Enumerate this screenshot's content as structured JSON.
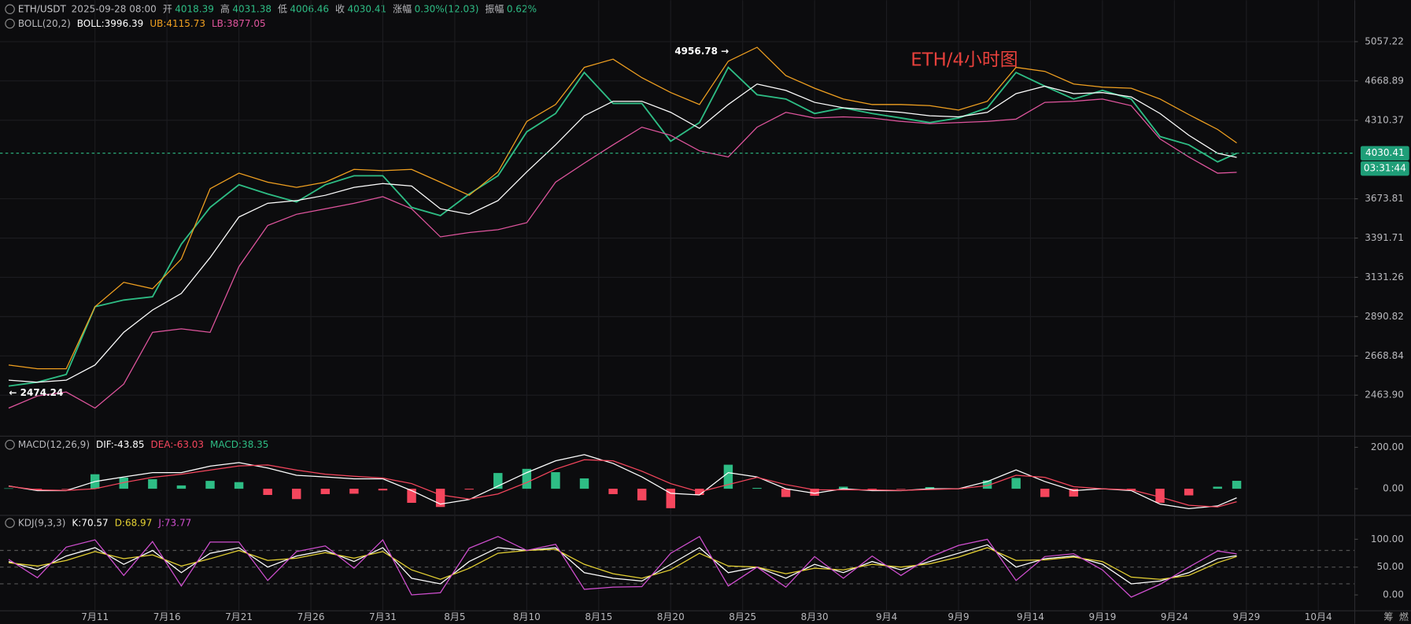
{
  "header": {
    "symbol": "ETH/USDT",
    "time": "2025-09-28 08:00",
    "fields": [
      {
        "label": "开",
        "value": "4018.39"
      },
      {
        "label": "高",
        "value": "4031.38"
      },
      {
        "label": "低",
        "value": "4006.46"
      },
      {
        "label": "收",
        "value": "4030.41"
      },
      {
        "label": "涨幅",
        "value": "0.30%(12.03)"
      },
      {
        "label": "振幅",
        "value": "0.62%"
      }
    ],
    "toolbar": [
      "筹",
      "燃"
    ]
  },
  "chart_data": [
    {
      "type": "line",
      "title": "ETH/4小时图",
      "indicator": "BOLL(20,2)",
      "indicator_values": [
        {
          "text": "BOLL:3996.39",
          "color": "#ffffff"
        },
        {
          "text": "UB:4115.73",
          "color": "#f0a020"
        },
        {
          "text": "LB:3877.05",
          "color": "#e0559e"
        }
      ],
      "x": [
        186,
        188,
        190,
        192,
        194,
        196,
        198,
        200,
        202,
        204,
        206,
        208,
        210,
        212,
        214,
        216,
        218,
        220,
        222,
        224,
        226,
        228,
        230,
        232,
        234,
        236,
        238,
        240,
        242,
        244,
        246,
        248,
        250,
        252,
        254,
        256,
        258,
        260,
        262,
        264,
        266,
        268,
        270,
        271.33
      ],
      "xlim": [
        185.4,
        279.5
      ],
      "ylim": [
        2273,
        5502
      ],
      "log_scale": true,
      "grid": true,
      "yticks": [
        5057.22,
        4668.89,
        4310.37,
        3673.81,
        3391.71,
        3131.26,
        2890.82,
        2668.84,
        {
          "value": 2463.9,
          "label": "2463.90"
        }
      ],
      "series": [
        {
          "color": "#2ebd85",
          "values": [
            2510,
            2530,
            2570,
            2950,
            2990,
            3010,
            3350,
            3610,
            3780,
            3710,
            3650,
            3780,
            3850,
            3850,
            3610,
            3550,
            3710,
            3850,
            4210,
            4370,
            4750,
            4460,
            4460,
            4130,
            4290,
            4800,
            4540,
            4500,
            4370,
            4420,
            4370,
            4330,
            4290,
            4330,
            4420,
            4750,
            4620,
            4500,
            4580,
            4500,
            4170,
            4100,
            3960,
            4030.41
          ]
        },
        {
          "color": "#ffffff",
          "values": [
            2540,
            2530,
            2540,
            2620,
            2800,
            2930,
            3030,
            3260,
            3540,
            3640,
            3660,
            3700,
            3760,
            3790,
            3770,
            3600,
            3560,
            3660,
            3880,
            4100,
            4350,
            4480,
            4480,
            4380,
            4240,
            4450,
            4640,
            4580,
            4470,
            4420,
            4400,
            4380,
            4350,
            4340,
            4380,
            4550,
            4620,
            4550,
            4560,
            4520,
            4370,
            4180,
            4030,
            3996.39
          ]
        },
        {
          "color": "#f0a020",
          "values": [
            2620,
            2600,
            2600,
            2950,
            3100,
            3060,
            3250,
            3750,
            3870,
            3800,
            3760,
            3800,
            3900,
            3890,
            3900,
            3800,
            3700,
            3880,
            4300,
            4450,
            4800,
            4880,
            4700,
            4560,
            4450,
            4860,
            5000,
            4720,
            4600,
            4500,
            4450,
            4450,
            4440,
            4400,
            4480,
            4800,
            4760,
            4640,
            4610,
            4600,
            4500,
            4360,
            4230,
            4115.73
          ]
        },
        {
          "color": "#e0559e",
          "values": [
            2400,
            2460,
            2480,
            2400,
            2520,
            2800,
            2820,
            2800,
            3200,
            3480,
            3560,
            3600,
            3640,
            3690,
            3600,
            3400,
            3430,
            3450,
            3500,
            3800,
            3950,
            4100,
            4250,
            4180,
            4050,
            4000,
            4250,
            4380,
            4330,
            4340,
            4330,
            4300,
            4280,
            4290,
            4300,
            4320,
            4470,
            4480,
            4500,
            4440,
            4150,
            4000,
            3870,
            3877.05
          ]
        }
      ],
      "annotations": [
        {
          "value": 4956.78,
          "label": "4956.78 →"
        },
        {
          "value": 2474.24,
          "label": "← 2474.24"
        }
      ],
      "last_price": {
        "value": 4030.41,
        "label": "4030.41"
      },
      "countdown": "03:31:44"
    },
    {
      "type": "line",
      "indicator": "MACD(12,26,9)",
      "indicator_values": [
        {
          "text": "DIF:-43.85",
          "color": "#ffffff"
        },
        {
          "text": "DEA:-63.03",
          "color": "#f6465d"
        },
        {
          "text": "MACD:38.35",
          "color": "#2ebd85"
        }
      ],
      "ylim": [
        -122,
        243
      ],
      "yticks": [
        {
          "value": 200,
          "label": "200.00"
        },
        {
          "value": 0,
          "label": "0.00"
        }
      ],
      "series": [
        {
          "kind": "bar",
          "up_color": "#2ebd85",
          "down_color": "#f6465d",
          "values": [
            2,
            -8,
            -2,
            70,
            54,
            46,
            16,
            38,
            32,
            -30,
            -50,
            -26,
            -24,
            -8,
            -68,
            -88,
            -4,
            76,
            96,
            80,
            50,
            -26,
            -56,
            -94,
            -30,
            116,
            4,
            -40,
            -34,
            10,
            -8,
            -2,
            8,
            0,
            40,
            52,
            -40,
            -38,
            0,
            -8,
            -68,
            -32,
            10,
            38.35
          ]
        },
        {
          "color": "#ffffff",
          "values": [
            13,
            -9,
            -9,
            35,
            57,
            78,
            78,
            109,
            126,
            100,
            65,
            57,
            48,
            48,
            -9,
            -74,
            -52,
            13,
            78,
            135,
            165,
            122,
            57,
            -22,
            -30,
            78,
            57,
            0,
            -22,
            0,
            -9,
            -9,
            0,
            0,
            35,
            91,
            35,
            -9,
            0,
            -9,
            -74,
            -96,
            -83,
            -43.85
          ]
        },
        {
          "color": "#f6465d",
          "values": [
            12,
            -5,
            -8,
            0,
            30,
            55,
            70,
            90,
            110,
            115,
            90,
            70,
            60,
            52,
            25,
            -30,
            -50,
            -25,
            30,
            95,
            140,
            135,
            85,
            25,
            -15,
            20,
            55,
            20,
            -5,
            -5,
            -5,
            -8,
            -4,
            0,
            15,
            65,
            55,
            10,
            0,
            -5,
            -40,
            -80,
            -88,
            -63.03
          ]
        }
      ]
    },
    {
      "type": "line",
      "indicator": "KDJ(9,3,3)",
      "indicator_values": [
        {
          "text": "K:70.57",
          "color": "#ffffff"
        },
        {
          "text": "D:68.97",
          "color": "#e6d233"
        },
        {
          "text": "J:73.77",
          "color": "#d04fd0"
        }
      ],
      "ylim": [
        -26,
        139
      ],
      "yticks": [
        {
          "value": 100,
          "label": "100.00"
        },
        {
          "value": 50,
          "label": "50.00"
        },
        {
          "value": 0,
          "label": "0.00"
        }
      ],
      "levels": [
        20,
        50,
        80
      ],
      "xticks": [
        {
          "value": 192,
          "label": "7月11"
        },
        {
          "value": 197,
          "label": "7月16"
        },
        {
          "value": 202,
          "label": "7月21"
        },
        {
          "value": 207,
          "label": "7月26"
        },
        {
          "value": 212,
          "label": "7月31"
        },
        {
          "value": 217,
          "label": "8月5"
        },
        {
          "value": 222,
          "label": "8月10"
        },
        {
          "value": 227,
          "label": "8月15"
        },
        {
          "value": 232,
          "label": "8月20"
        },
        {
          "value": 237,
          "label": "8月25"
        },
        {
          "value": 242,
          "label": "8月30"
        },
        {
          "value": 247,
          "label": "9月4"
        },
        {
          "value": 252,
          "label": "9月9"
        },
        {
          "value": 257,
          "label": "9月14"
        },
        {
          "value": 262,
          "label": "9月19"
        },
        {
          "value": 267,
          "label": "9月24"
        },
        {
          "value": 272,
          "label": "9月29"
        },
        {
          "value": 277,
          "label": "10月4"
        }
      ],
      "series": [
        {
          "color": "#ffffff",
          "values": [
            60,
            45,
            70,
            85,
            55,
            80,
            40,
            75,
            85,
            50,
            70,
            80,
            60,
            85,
            30,
            20,
            60,
            85,
            80,
            85,
            40,
            30,
            25,
            55,
            85,
            40,
            50,
            30,
            55,
            40,
            60,
            45,
            60,
            75,
            90,
            50,
            65,
            70,
            55,
            20,
            25,
            40,
            65,
            70.57
          ]
        },
        {
          "color": "#e6d233",
          "values": [
            58,
            52,
            62,
            78,
            65,
            72,
            52,
            65,
            80,
            62,
            66,
            76,
            66,
            78,
            45,
            28,
            48,
            75,
            80,
            82,
            55,
            38,
            30,
            45,
            75,
            52,
            50,
            38,
            48,
            45,
            55,
            50,
            56,
            68,
            85,
            62,
            63,
            68,
            60,
            32,
            28,
            35,
            58,
            68.97
          ]
        },
        {
          "color": "#d04fd0",
          "values": [
            64,
            31,
            86,
            99,
            35,
            96,
            16,
            95,
            95,
            26,
            78,
            88,
            48,
            99,
            0,
            4,
            84,
            105,
            80,
            91,
            10,
            14,
            15,
            75,
            105,
            16,
            50,
            14,
            69,
            30,
            70,
            35,
            68,
            89,
            100,
            26,
            69,
            74,
            45,
            -4,
            19,
            50,
            79,
            73.77
          ]
        }
      ]
    }
  ]
}
